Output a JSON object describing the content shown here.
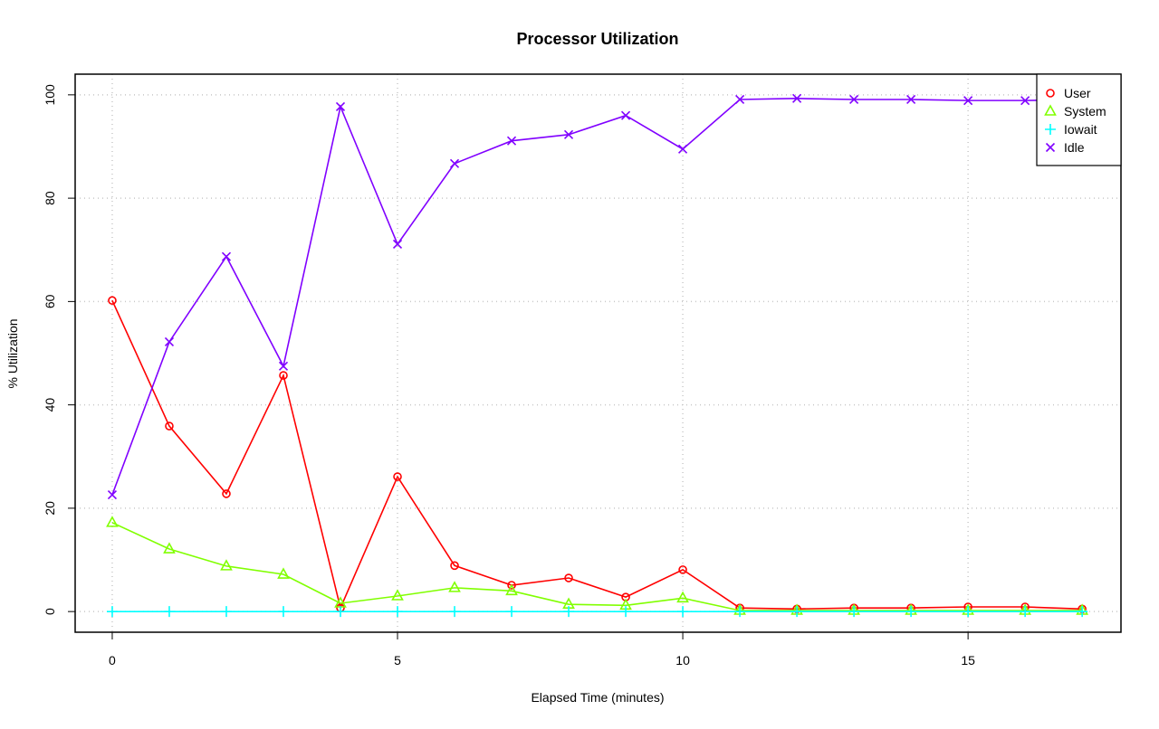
{
  "chart_data": {
    "type": "line",
    "title": "Processor Utilization",
    "xlabel": "Elapsed Time (minutes)",
    "ylabel": "% Utilization",
    "xlim": [
      -0.65,
      17.68
    ],
    "ylim": [
      -4,
      104
    ],
    "xticks": [
      0,
      5,
      10,
      15
    ],
    "yticks": [
      0,
      20,
      40,
      60,
      80,
      100
    ],
    "grid": true,
    "legend_position": "top-right",
    "x": [
      0,
      1,
      2,
      3,
      4,
      5,
      6,
      7,
      8,
      9,
      10,
      11,
      12,
      13,
      14,
      15,
      16,
      17
    ],
    "series": [
      {
        "name": "User",
        "color": "#ff0000",
        "marker": "circle",
        "values": [
          60.2,
          35.9,
          22.8,
          45.7,
          0.7,
          26.1,
          8.9,
          5.1,
          6.5,
          2.8,
          8.1,
          0.7,
          0.5,
          0.7,
          0.7,
          0.9,
          0.9,
          0.5
        ]
      },
      {
        "name": "System",
        "color": "#80ff00",
        "marker": "triangle",
        "values": [
          17.2,
          12.1,
          8.8,
          7.2,
          1.6,
          3.0,
          4.6,
          4.0,
          1.4,
          1.2,
          2.6,
          0.2,
          0.2,
          0.2,
          0.2,
          0.2,
          0.2,
          0.2
        ]
      },
      {
        "name": "Iowait",
        "color": "#00ffff",
        "marker": "plus",
        "values": [
          0,
          0,
          0,
          0,
          0,
          0,
          0,
          0,
          0,
          0,
          0,
          0,
          0,
          0,
          0,
          0,
          0,
          0
        ]
      },
      {
        "name": "Idle",
        "color": "#8000ff",
        "marker": "cross",
        "values": [
          22.6,
          52.2,
          68.7,
          47.5,
          97.7,
          71.1,
          86.7,
          91.1,
          92.3,
          96.0,
          89.5,
          99.1,
          99.3,
          99.1,
          99.1,
          98.9,
          98.9,
          99.1
        ]
      }
    ]
  }
}
